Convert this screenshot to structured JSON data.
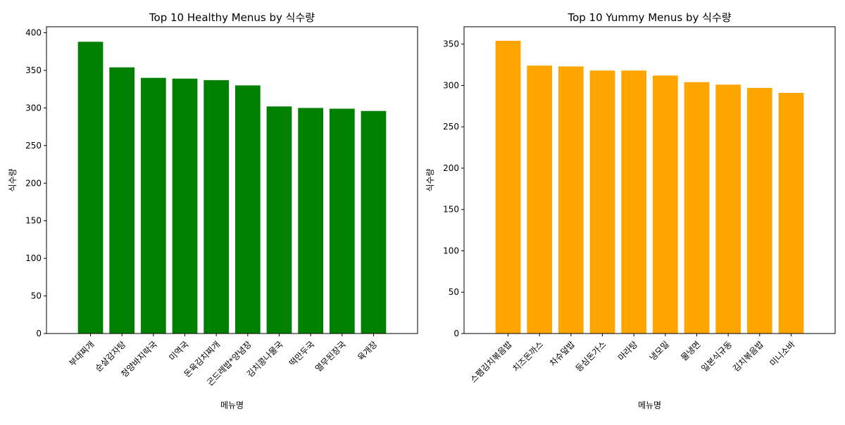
{
  "chart_data": [
    {
      "type": "bar",
      "title": "Top 10 Healthy Menus by 식수량",
      "xlabel": "메뉴명",
      "ylabel": "식수량",
      "ylim": [
        0,
        408
      ],
      "yticks": [
        0,
        50,
        100,
        150,
        200,
        250,
        300,
        350,
        400
      ],
      "color": "#008000",
      "grid": false,
      "categories": [
        "부대찌개",
        "순살감자탕",
        "청양바지락국",
        "미역국",
        "돈육김치찌개",
        "곤드레밥*양념장",
        "김치콩나물국",
        "떡만두국",
        "열무된장국",
        "육개장"
      ],
      "values": [
        388,
        354,
        340,
        339,
        337,
        330,
        302,
        300,
        299,
        296
      ]
    },
    {
      "type": "bar",
      "title": "Top 10 Yummy Menus by 식수량",
      "xlabel": "메뉴명",
      "ylabel": "식수량",
      "ylim": [
        0,
        371
      ],
      "yticks": [
        0,
        50,
        100,
        150,
        200,
        250,
        300,
        350
      ],
      "color": "#FFA500",
      "grid": false,
      "categories": [
        "스팸김치볶음밥",
        "치즈돈까스",
        "차슈덮밥",
        "등심돈가스",
        "마라탕",
        "냉모밀",
        "물냉면",
        "일본식규동",
        "김치볶음밥",
        "미니소바"
      ],
      "values": [
        354,
        324,
        323,
        318,
        318,
        312,
        304,
        301,
        297,
        291
      ]
    }
  ]
}
